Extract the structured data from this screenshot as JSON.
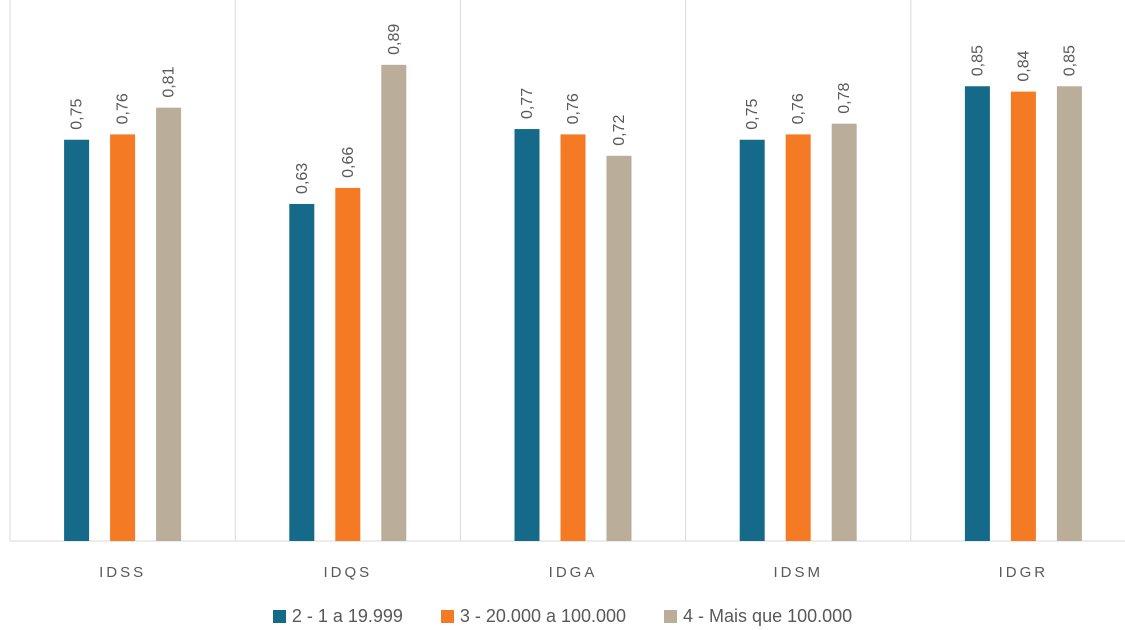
{
  "chart_data": {
    "type": "bar",
    "title": "",
    "xlabel": "",
    "ylabel": "",
    "categories": [
      "IDSS",
      "IDQS",
      "IDGA",
      "IDSM",
      "IDGR"
    ],
    "series": [
      {
        "name": "2 - 1 a 19.999",
        "color": "#156A89",
        "values": [
          0.75,
          0.63,
          0.77,
          0.75,
          0.85
        ],
        "labels": [
          "0,75",
          "0,63",
          "0,77",
          "0,75",
          "0,85"
        ]
      },
      {
        "name": "3 - 20.000 a 100.000",
        "color": "#F47A24",
        "values": [
          0.76,
          0.66,
          0.76,
          0.76,
          0.84
        ],
        "labels": [
          "0,76",
          "0,66",
          "0,76",
          "0,76",
          "0,84"
        ]
      },
      {
        "name": "4 - Mais que 100.000",
        "color": "#BAAD9A",
        "values": [
          0.81,
          0.89,
          0.72,
          0.78,
          0.85
        ],
        "labels": [
          "0,81",
          "0,89",
          "0,72",
          "0,78",
          "0,85"
        ]
      }
    ],
    "ylim": [
      0,
      1
    ],
    "grid": false,
    "legend_position": "bottom"
  }
}
